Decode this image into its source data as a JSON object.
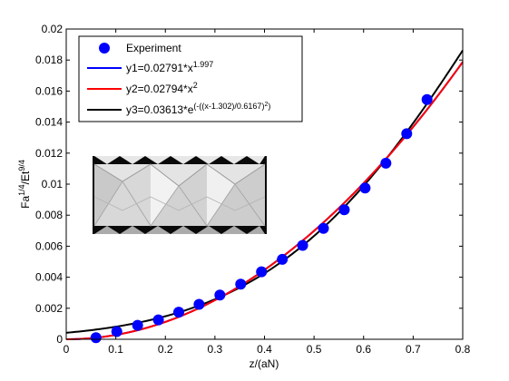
{
  "chart_data": {
    "type": "scatter",
    "xlabel": "z/(aN)",
    "ylabel_parts": [
      "Fa",
      "1/4",
      "/Et",
      "9/4"
    ],
    "xlim": [
      0,
      0.8
    ],
    "ylim": [
      0,
      0.02
    ],
    "x_ticks": [
      "0",
      "0.1",
      "0.2",
      "0.3",
      "0.4",
      "0.5",
      "0.6",
      "0.7",
      "0.8"
    ],
    "y_ticks": [
      "0",
      "0.002",
      "0.004",
      "0.006",
      "0.008",
      "0.01",
      "0.012",
      "0.014",
      "0.016",
      "0.018",
      "0.02"
    ],
    "grid": false,
    "legend_position": "top-left",
    "series": [
      {
        "name": "Experiment",
        "kind": "markers",
        "color": "#0000ff",
        "x": [
          0.06,
          0.102,
          0.144,
          0.186,
          0.227,
          0.268,
          0.31,
          0.352,
          0.394,
          0.436,
          0.477,
          0.519,
          0.561,
          0.603,
          0.645,
          0.687,
          0.728
        ],
        "y": [
          0.0001,
          0.0005,
          0.0009,
          0.00125,
          0.00175,
          0.00225,
          0.00285,
          0.00355,
          0.00435,
          0.00515,
          0.00605,
          0.00715,
          0.00835,
          0.00975,
          0.01135,
          0.01325,
          0.01545
        ]
      },
      {
        "name_parts": [
          "y1=0.02791*x",
          "1.997"
        ],
        "kind": "line",
        "formula": "power",
        "a": 0.02791,
        "b": 1.997,
        "color": "#0000ff"
      },
      {
        "name_parts": [
          "y2=0.02794*x",
          "2"
        ],
        "kind": "line",
        "formula": "power",
        "a": 0.02794,
        "b": 2,
        "color": "#ff0000"
      },
      {
        "name_parts": [
          "y3=0.03613*e",
          "(-((x-1.302)/0.6167)",
          "2",
          ")"
        ],
        "kind": "line",
        "formula": "gauss",
        "a": 0.03613,
        "b": 1.302,
        "c": 0.6167,
        "color": "#000000"
      }
    ]
  }
}
